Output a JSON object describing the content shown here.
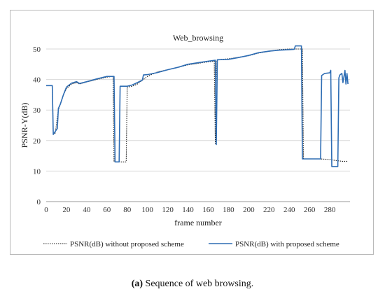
{
  "caption": {
    "label": "(a)",
    "text": "Sequence of web browsing."
  },
  "chart_data": {
    "type": "line",
    "title": "Web_browsing",
    "xlabel": "frame number",
    "ylabel": "PSNR-Y(dB)",
    "xlim": [
      0,
      300
    ],
    "ylim": [
      0,
      50
    ],
    "xticks": [
      0,
      20,
      40,
      60,
      80,
      100,
      120,
      140,
      160,
      180,
      200,
      220,
      240,
      260,
      280
    ],
    "yticks": [
      0,
      10,
      20,
      30,
      40,
      50
    ],
    "grid": "horizontal",
    "legend_position": "bottom",
    "series": [
      {
        "name": "PSNR(dB) without proposed scheme",
        "style": "dotted",
        "color": "#1a1a1a",
        "x": [
          0,
          6,
          7,
          9,
          12,
          14,
          17,
          20,
          25,
          30,
          33,
          40,
          50,
          60,
          66,
          67,
          70,
          75,
          79,
          80,
          85,
          90,
          100,
          110,
          120,
          130,
          140,
          150,
          160,
          166,
          167,
          168,
          169,
          170,
          180,
          190,
          200,
          210,
          220,
          230,
          240,
          248,
          249,
          250,
          253,
          254,
          260,
          270,
          280,
          285,
          290,
          292,
          295,
          298
        ],
        "y": [
          38,
          38,
          22,
          22.5,
          30,
          32,
          35,
          37,
          38.5,
          39,
          38.5,
          39.2,
          40,
          40.8,
          41,
          13,
          13,
          13,
          13,
          37.5,
          37.8,
          38.5,
          41,
          42.5,
          43.2,
          44,
          44.8,
          45.3,
          45.8,
          46,
          19,
          46,
          46.3,
          46.5,
          46.8,
          47.3,
          47.8,
          48.7,
          49.2,
          49.8,
          50,
          50,
          50,
          50,
          50,
          14,
          14,
          14,
          13.8,
          13.5,
          13.3,
          13.2,
          13.2,
          13.2
        ]
      },
      {
        "name": "PSNR(dB) with proposed scheme",
        "style": "solid",
        "color": "#2e6db4",
        "x": [
          0,
          6,
          7,
          9,
          11,
          12,
          14,
          17,
          20,
          25,
          30,
          33,
          40,
          50,
          60,
          67,
          68,
          72,
          73,
          80,
          85,
          90,
          95,
          96,
          100,
          110,
          120,
          130,
          140,
          150,
          160,
          167,
          168,
          169,
          170,
          180,
          190,
          200,
          210,
          220,
          230,
          240,
          245,
          246,
          250,
          252,
          253,
          260,
          270,
          271,
          272,
          275,
          280,
          281,
          282,
          288,
          289,
          290,
          292,
          293,
          295,
          296,
          297,
          298
        ],
        "y": [
          38,
          38,
          22,
          23,
          24,
          30.5,
          32,
          35,
          37.5,
          38.8,
          39.3,
          38.7,
          39.3,
          40.2,
          41,
          41,
          13,
          13,
          37.8,
          37.8,
          38.2,
          39,
          39.8,
          41.5,
          41.6,
          42.3,
          43.2,
          44,
          45,
          45.5,
          46,
          46.3,
          18.7,
          46.5,
          46.5,
          46.6,
          47.2,
          47.9,
          48.8,
          49.3,
          49.6,
          49.8,
          49.9,
          51,
          51,
          51,
          14,
          14,
          14,
          14,
          41.3,
          42,
          42.2,
          43,
          11.5,
          11.5,
          40.5,
          41.5,
          42,
          39,
          43,
          38.5,
          42,
          38.5
        ]
      }
    ]
  }
}
